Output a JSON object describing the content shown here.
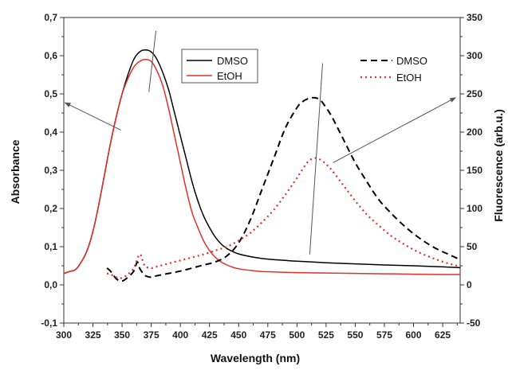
{
  "chart_data": {
    "type": "line",
    "xlabel": "Wavelength (nm)",
    "ylabel_left": "Absorbance",
    "ylabel_right": "Fluorescence (arb.u.)",
    "xlim": [
      300,
      640
    ],
    "ylim_left": [
      -0.1,
      0.7
    ],
    "ylim_right": [
      -50,
      350
    ],
    "x_ticks": [
      300,
      325,
      350,
      375,
      400,
      425,
      450,
      475,
      500,
      525,
      550,
      575,
      600,
      625
    ],
    "y_left_ticks": [
      "-0,1",
      "0,0",
      "0,1",
      "0,2",
      "0,3",
      "0,4",
      "0,5",
      "0,6",
      "0,7"
    ],
    "y_right_ticks": [
      "-50",
      "0",
      "50",
      "100",
      "150",
      "200",
      "250",
      "300",
      "350"
    ],
    "legend_absorbance": [
      "DMSO",
      "EtOH"
    ],
    "legend_fluorescence": [
      "DMSO",
      "EtOH"
    ],
    "colors": {
      "DMSO": "#000000",
      "EtOH": "#e0302b",
      "annotation": "#555555"
    },
    "series": [
      {
        "name": "DMSO",
        "axis": "left",
        "style": "solid",
        "color": "#000000",
        "x": [
          300,
          305,
          310,
          315,
          320,
          325,
          330,
          335,
          340,
          345,
          350,
          355,
          360,
          365,
          370,
          375,
          380,
          385,
          390,
          395,
          400,
          405,
          410,
          415,
          420,
          425,
          430,
          435,
          440,
          445,
          450,
          460,
          470,
          480,
          490,
          500,
          525,
          550,
          575,
          600,
          625,
          640
        ],
        "y": [
          0.03,
          0.035,
          0.04,
          0.06,
          0.09,
          0.14,
          0.21,
          0.29,
          0.37,
          0.44,
          0.5,
          0.55,
          0.59,
          0.61,
          0.615,
          0.61,
          0.59,
          0.555,
          0.51,
          0.45,
          0.39,
          0.33,
          0.27,
          0.22,
          0.18,
          0.15,
          0.125,
          0.107,
          0.095,
          0.087,
          0.081,
          0.074,
          0.069,
          0.066,
          0.064,
          0.062,
          0.058,
          0.055,
          0.052,
          0.05,
          0.047,
          0.045
        ]
      },
      {
        "name": "EtOH",
        "axis": "left",
        "style": "solid",
        "color": "#e0302b",
        "x": [
          300,
          305,
          310,
          315,
          320,
          325,
          330,
          335,
          340,
          345,
          350,
          355,
          360,
          365,
          370,
          375,
          380,
          385,
          390,
          395,
          400,
          405,
          410,
          415,
          420,
          425,
          430,
          435,
          440,
          445,
          450,
          460,
          470,
          480,
          490,
          500,
          525,
          550,
          575,
          600,
          625,
          640
        ],
        "y": [
          0.03,
          0.035,
          0.04,
          0.06,
          0.09,
          0.14,
          0.21,
          0.29,
          0.37,
          0.44,
          0.5,
          0.54,
          0.57,
          0.585,
          0.59,
          0.585,
          0.56,
          0.52,
          0.46,
          0.39,
          0.32,
          0.25,
          0.19,
          0.15,
          0.115,
          0.09,
          0.072,
          0.06,
          0.052,
          0.046,
          0.042,
          0.038,
          0.035,
          0.034,
          0.033,
          0.032,
          0.031,
          0.03,
          0.029,
          0.028,
          0.027,
          0.027
        ]
      },
      {
        "name": "DMSO",
        "axis": "right",
        "style": "dashed",
        "color": "#000000",
        "x": [
          337,
          340,
          345,
          350,
          355,
          360,
          363,
          365,
          368,
          370,
          375,
          380,
          390,
          400,
          410,
          420,
          430,
          440,
          450,
          460,
          470,
          480,
          490,
          500,
          505,
          510,
          515,
          520,
          525,
          530,
          540,
          550,
          560,
          570,
          580,
          590,
          600,
          610,
          620,
          630,
          640
        ],
        "y": [
          22,
          18,
          8,
          5,
          10,
          18,
          30,
          22,
          15,
          12,
          10,
          12,
          15,
          18,
          22,
          26,
          30,
          38,
          55,
          85,
          125,
          165,
          205,
          232,
          240,
          244,
          245,
          242,
          232,
          220,
          190,
          160,
          135,
          112,
          95,
          80,
          67,
          56,
          47,
          40,
          33
        ]
      },
      {
        "name": "EtOH",
        "axis": "right",
        "style": "dotted",
        "color": "#e0302b",
        "x": [
          337,
          340,
          345,
          350,
          355,
          360,
          365,
          368,
          370,
          375,
          380,
          390,
          400,
          410,
          420,
          430,
          440,
          450,
          460,
          470,
          480,
          490,
          500,
          505,
          510,
          515,
          520,
          525,
          530,
          540,
          550,
          560,
          570,
          580,
          590,
          600,
          610,
          620,
          630,
          640
        ],
        "y": [
          15,
          14,
          10,
          9,
          14,
          22,
          40,
          30,
          24,
          22,
          24,
          28,
          32,
          36,
          40,
          45,
          50,
          58,
          68,
          82,
          98,
          118,
          140,
          152,
          162,
          166,
          164,
          158,
          150,
          130,
          110,
          92,
          78,
          65,
          55,
          46,
          39,
          33,
          28,
          24
        ]
      }
    ],
    "annotation_arrows": [
      {
        "axis": "left",
        "from": [
          349,
          0.405
        ],
        "to": [
          301,
          0.477
        ]
      },
      {
        "axis": "right",
        "from": [
          531,
          160
        ],
        "to": [
          636,
          245
        ]
      }
    ],
    "peak_lines": [
      {
        "axis": "left",
        "from": [
          373,
          0.505
        ],
        "to": [
          379,
          0.665
        ]
      },
      {
        "axis": "right",
        "from": [
          511,
          40
        ],
        "to": [
          522,
          290
        ]
      }
    ]
  }
}
